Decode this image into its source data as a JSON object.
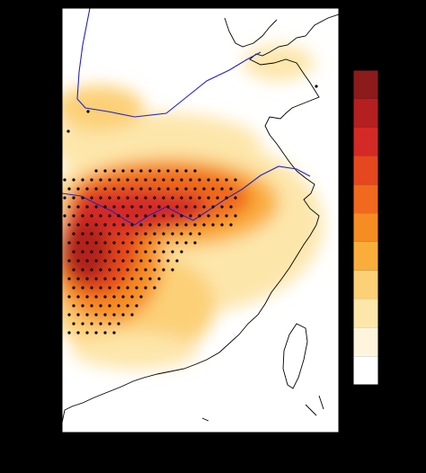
{
  "colorbar": {
    "colors": [
      "#8c1b1b",
      "#b3201f",
      "#d42a26",
      "#e5471f",
      "#f0691e",
      "#f68d22",
      "#f9ae3c",
      "#fcd077",
      "#fde6aa",
      "#fff5dd",
      "#ffffff"
    ]
  }
}
